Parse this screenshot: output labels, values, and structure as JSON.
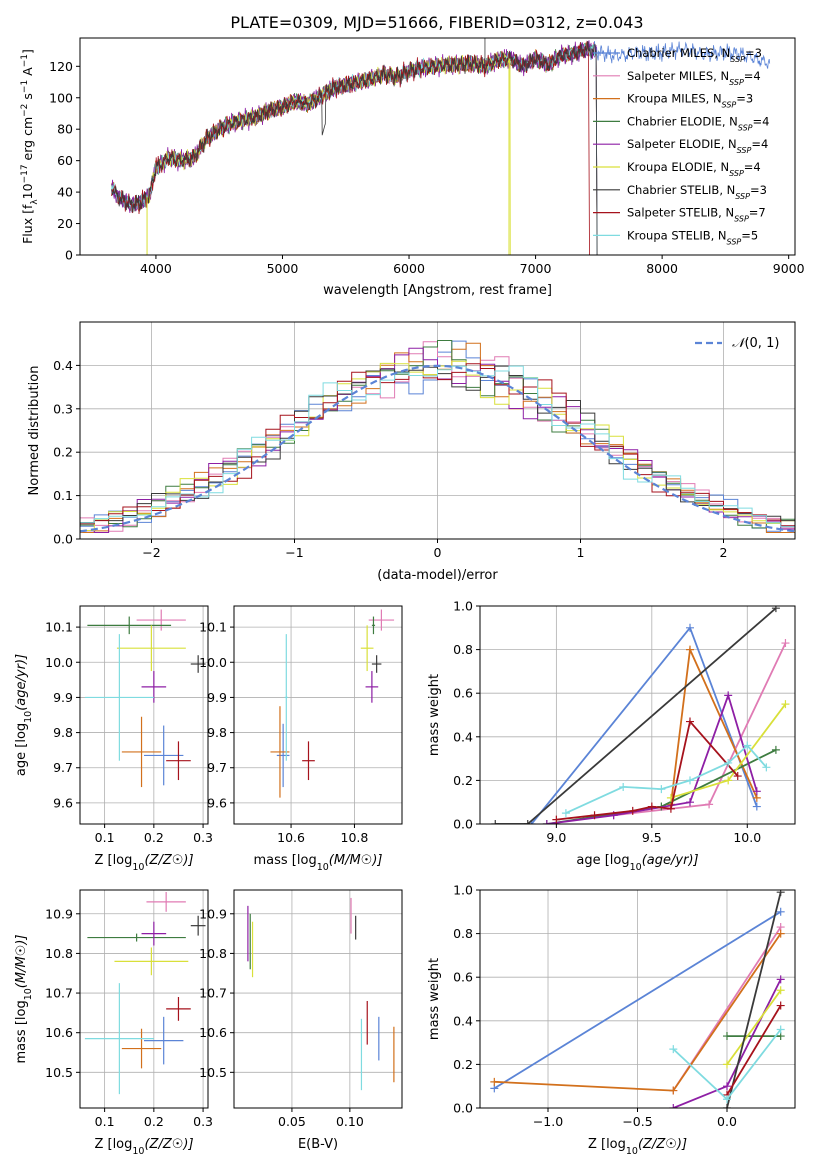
{
  "figure_title": "PLATE=0309, MJD=51666, FIBERID=0312, z=0.043",
  "colors": [
    "#5b84d6",
    "#e07bb4",
    "#d2701c",
    "#3e7c40",
    "#8e1fa5",
    "#d9e03a",
    "#3a3a3a",
    "#a6121c",
    "#7fdbe0"
  ],
  "legend": {
    "entries": [
      "Chabrier MILES, N_SSP=3",
      "Salpeter MILES, N_SSP=4",
      "Kroupa MILES, N_SSP=3",
      "Chabrier ELODIE, N_SSP=4",
      "Salpeter ELODIE, N_SSP=4",
      "Kroupa ELODIE, N_SSP=4",
      "Chabrier STELIB, N_SSP=3",
      "Salpeter STELIB, N_SSP=7",
      "Kroupa STELIB, N_SSP=5"
    ],
    "prefix": [
      "Chabrier MILES, N",
      "Salpeter MILES, N",
      "Kroupa MILES, N",
      "Chabrier ELODIE, N",
      "Salpeter ELODIE, N",
      "Kroupa ELODIE, N",
      "Chabrier STELIB, N",
      "Salpeter STELIB, N",
      "Kroupa STELIB, N"
    ],
    "sub": "SSP",
    "count": [
      "=3",
      "=4",
      "=3",
      "=4",
      "=4",
      "=4",
      "=3",
      "=7",
      "=5"
    ]
  },
  "chart_data": [
    {
      "id": "spectrum",
      "type": "line",
      "xlabel": "wavelength [Angstrom, rest frame]",
      "ylabel_parts": [
        "Flux [f",
        "λ",
        "10",
        "−17",
        " erg cm",
        "−2",
        " s",
        "−1",
        " A",
        "−1",
        "]"
      ],
      "xlim": [
        3400,
        9050
      ],
      "ylim": [
        0,
        138
      ],
      "xticks": [
        4000,
        5000,
        6000,
        7000,
        8000,
        9000
      ],
      "yticks": [
        0,
        20,
        40,
        60,
        80,
        100,
        120
      ],
      "continuum": [
        [
          3650,
          43
        ],
        [
          3700,
          37
        ],
        [
          3800,
          32
        ],
        [
          3870,
          33
        ],
        [
          3950,
          38
        ],
        [
          4000,
          56
        ],
        [
          4050,
          58
        ],
        [
          4100,
          62
        ],
        [
          4200,
          60
        ],
        [
          4300,
          62
        ],
        [
          4400,
          74
        ],
        [
          4500,
          80
        ],
        [
          4600,
          84
        ],
        [
          4700,
          86
        ],
        [
          4800,
          88
        ],
        [
          4900,
          92
        ],
        [
          5000,
          94
        ],
        [
          5100,
          98
        ],
        [
          5200,
          96
        ],
        [
          5300,
          101
        ],
        [
          5400,
          106
        ],
        [
          5500,
          108
        ],
        [
          5600,
          110
        ],
        [
          5700,
          112
        ],
        [
          5800,
          115
        ],
        [
          5900,
          113
        ],
        [
          6000,
          117
        ],
        [
          6100,
          119
        ],
        [
          6200,
          120
        ],
        [
          6300,
          121
        ],
        [
          6400,
          121
        ],
        [
          6500,
          122
        ],
        [
          6600,
          120
        ],
        [
          6700,
          124
        ],
        [
          6800,
          125
        ],
        [
          6900,
          120
        ],
        [
          7000,
          125
        ],
        [
          7100,
          121
        ],
        [
          7200,
          127
        ],
        [
          7300,
          128
        ],
        [
          7400,
          131
        ],
        [
          7500,
          129
        ],
        [
          7600,
          127
        ],
        [
          7700,
          127
        ],
        [
          7800,
          129
        ],
        [
          7900,
          128
        ],
        [
          8000,
          129
        ],
        [
          8100,
          130
        ],
        [
          8200,
          131
        ],
        [
          8300,
          128
        ],
        [
          8400,
          128
        ],
        [
          8500,
          129
        ],
        [
          8600,
          128
        ],
        [
          8700,
          126
        ],
        [
          8800,
          123
        ],
        [
          8850,
          122
        ]
      ],
      "series_ranges": [
        [
          3650,
          8850
        ],
        [
          3650,
          7480
        ],
        [
          3650,
          7480
        ],
        [
          3650,
          7480
        ],
        [
          3650,
          7480
        ],
        [
          3930,
          6800
        ],
        [
          3650,
          7480
        ],
        [
          3650,
          7420
        ],
        [
          3650,
          7480
        ]
      ],
      "drop_edges": [
        [
          3930,
          5
        ],
        [
          6790,
          5
        ],
        [
          7420,
          7
        ]
      ],
      "spike_edges": [
        [
          5330,
          6
        ],
        [
          6600,
          6
        ]
      ]
    },
    {
      "id": "residuals",
      "type": "histogram",
      "xlabel": "(data-model)/error",
      "ylabel": "Normed distribution",
      "xlim": [
        -2.5,
        2.5
      ],
      "ylim": [
        0,
        0.5
      ],
      "xticks": [
        -2,
        -1,
        0,
        1,
        2
      ],
      "yticks": [
        0.0,
        0.1,
        0.2,
        0.3,
        0.4
      ],
      "bin_width": 0.1,
      "gaussian_legend": "N(0,1)",
      "gaussian_symbol": "𝒩",
      "gaussian_args": "(0, 1)"
    },
    {
      "id": "age-vs-z",
      "type": "errorbar",
      "xlabel": "Z [log10(Z/Z☉)]",
      "ylabel": "age [log10(age/yr)]",
      "xlim": [
        0.05,
        0.31
      ],
      "ylim": [
        9.54,
        10.16
      ],
      "xticks": [
        0.1,
        0.2,
        0.3
      ],
      "yticks": [
        9.6,
        9.7,
        9.8,
        9.9,
        10.0,
        10.1
      ],
      "points": [
        [
          0.22,
          0.04,
          9.735,
          0.085
        ],
        [
          0.215,
          0.05,
          10.12,
          0.03
        ],
        [
          0.175,
          0.04,
          9.745,
          0.1
        ],
        [
          0.15,
          0.085,
          10.105,
          0.025
        ],
        [
          0.2,
          0.025,
          9.93,
          0.045
        ],
        [
          0.195,
          0.07,
          10.04,
          0.065
        ],
        [
          0.29,
          0.015,
          9.995,
          0.025
        ],
        [
          0.25,
          0.025,
          9.72,
          0.055
        ],
        [
          0.13,
          0.07,
          9.9,
          0.18
        ]
      ]
    },
    {
      "id": "age-vs-mass",
      "type": "errorbar",
      "xlabel": "mass [log10(M/M☉)]",
      "ylabel": "",
      "xlim": [
        10.42,
        10.95
      ],
      "ylim": [
        9.54,
        10.16
      ],
      "xticks": [
        10.6,
        10.8
      ],
      "yticks": [
        9.6,
        9.7,
        9.8,
        9.9,
        10.0,
        10.1
      ],
      "points": [
        [
          10.575,
          0.02,
          9.735,
          0.09
        ],
        [
          10.885,
          0.04,
          10.12,
          0.03
        ],
        [
          10.565,
          0.03,
          9.745,
          0.13
        ],
        [
          10.86,
          0.005,
          10.105,
          0.025
        ],
        [
          10.855,
          0.02,
          9.93,
          0.045
        ],
        [
          10.84,
          0.02,
          10.04,
          0.065
        ],
        [
          10.87,
          0.015,
          9.995,
          0.025
        ],
        [
          10.655,
          0.02,
          9.72,
          0.055
        ],
        [
          10.585,
          0.005,
          9.9,
          0.18
        ]
      ]
    },
    {
      "id": "mass-weight-vs-age",
      "type": "line",
      "xlabel": "age [log10(age/yr)]",
      "ylabel": "mass weight",
      "xlim": [
        8.6,
        10.25
      ],
      "ylim": [
        0,
        1.0
      ],
      "xticks": [
        9.0,
        9.5,
        10.0
      ],
      "yticks": [
        0.0,
        0.2,
        0.4,
        0.6,
        0.8,
        1.0
      ],
      "series": [
        {
          "x": [
            8.87,
            9.7,
            10.05
          ],
          "y": [
            0.0,
            0.9,
            0.08
          ]
        },
        {
          "x": [
            9.3,
            9.8,
            10.2
          ],
          "y": [
            0.04,
            0.09,
            0.83
          ]
        },
        {
          "x": [
            9.6,
            9.7,
            10.05
          ],
          "y": [
            0.09,
            0.8,
            0.12
          ]
        },
        {
          "x": [
            8.95,
            9.55,
            10.15
          ],
          "y": [
            0.0,
            0.08,
            0.34
          ]
        },
        {
          "x": [
            8.95,
            9.3,
            9.7,
            9.9,
            10.05
          ],
          "y": [
            0.0,
            0.04,
            0.1,
            0.59,
            0.15
          ]
        },
        {
          "x": [
            9.6,
            9.9,
            10.2
          ],
          "y": [
            0.12,
            0.2,
            0.55
          ]
        },
        {
          "x": [
            8.68,
            8.85,
            10.15
          ],
          "y": [
            0.0,
            0.0,
            0.99
          ]
        },
        {
          "x": [
            9.0,
            9.2,
            9.4,
            9.5,
            9.6,
            9.7,
            9.95
          ],
          "y": [
            0.02,
            0.04,
            0.06,
            0.08,
            0.07,
            0.47,
            0.22
          ]
        },
        {
          "x": [
            9.05,
            9.35,
            9.55,
            9.7,
            9.9,
            10.0,
            10.1
          ],
          "y": [
            0.05,
            0.17,
            0.16,
            0.2,
            0.28,
            0.36,
            0.26
          ]
        }
      ]
    },
    {
      "id": "mass-vs-z",
      "type": "errorbar",
      "xlabel": "Z [log10(Z/Z☉)]",
      "ylabel": "mass [log10(M/M☉)]",
      "xlim": [
        0.05,
        0.31
      ],
      "ylim": [
        10.41,
        10.96
      ],
      "xticks": [
        0.1,
        0.2,
        0.3
      ],
      "yticks": [
        10.5,
        10.6,
        10.7,
        10.8,
        10.9
      ],
      "points": [
        [
          0.22,
          0.04,
          10.58,
          0.06
        ],
        [
          0.225,
          0.04,
          10.93,
          0.025
        ],
        [
          0.175,
          0.04,
          10.56,
          0.05
        ],
        [
          0.165,
          0.1,
          10.84,
          0.01
        ],
        [
          0.2,
          0.025,
          10.85,
          0.03
        ],
        [
          0.195,
          0.075,
          10.78,
          0.035
        ],
        [
          0.29,
          0.015,
          10.87,
          0.025
        ],
        [
          0.25,
          0.025,
          10.66,
          0.03
        ],
        [
          0.13,
          0.07,
          10.585,
          0.14
        ]
      ]
    },
    {
      "id": "mass-vs-ebv",
      "type": "errorbar",
      "xlabel": "E(B-V)",
      "ylabel": "",
      "xlim": [
        0.0,
        0.145
      ],
      "ylim": [
        10.41,
        10.96
      ],
      "xticks": [
        0.05,
        0.1
      ],
      "yticks": [
        10.5,
        10.6,
        10.7,
        10.8,
        10.9
      ],
      "points": [
        [
          0.125,
          0.0,
          10.585,
          0.055
        ],
        [
          0.101,
          0.0,
          10.895,
          0.045
        ],
        [
          0.138,
          0.0,
          10.545,
          0.07
        ],
        [
          0.014,
          0.0,
          10.83,
          0.07
        ],
        [
          0.012,
          0.0,
          10.85,
          0.07
        ],
        [
          0.016,
          0.0,
          10.81,
          0.07
        ],
        [
          0.105,
          0.0,
          10.865,
          0.03
        ],
        [
          0.115,
          0.0,
          10.625,
          0.055
        ],
        [
          0.11,
          0.0,
          10.545,
          0.09
        ]
      ]
    },
    {
      "id": "mass-weight-vs-z",
      "type": "line",
      "xlabel": "Z [log10(Z/Z☉)]",
      "ylabel": "mass weight",
      "xlim": [
        -1.38,
        0.38
      ],
      "ylim": [
        0,
        1.0
      ],
      "xticks": [
        -1.0,
        -0.5,
        0.0
      ],
      "yticks": [
        0.0,
        0.2,
        0.4,
        0.6,
        0.8,
        1.0
      ],
      "series": [
        {
          "x": [
            -1.3,
            0.3
          ],
          "y": [
            0.09,
            0.9
          ]
        },
        {
          "x": [
            -0.3,
            0.3
          ],
          "y": [
            0.08,
            0.83
          ]
        },
        {
          "x": [
            -1.3,
            -0.3,
            0.3
          ],
          "y": [
            0.12,
            0.08,
            0.8
          ]
        },
        {
          "x": [
            0.0,
            0.3
          ],
          "y": [
            0.33,
            0.33
          ]
        },
        {
          "x": [
            -0.3,
            0.0,
            0.3
          ],
          "y": [
            0.0,
            0.1,
            0.59
          ]
        },
        {
          "x": [
            0.0,
            0.3
          ],
          "y": [
            0.2,
            0.54
          ]
        },
        {
          "x": [
            0.0,
            0.3
          ],
          "y": [
            0.0,
            0.99
          ]
        },
        {
          "x": [
            0.0,
            0.3
          ],
          "y": [
            0.06,
            0.47
          ]
        },
        {
          "x": [
            -0.3,
            0.0,
            0.3
          ],
          "y": [
            0.27,
            0.04,
            0.36
          ]
        }
      ]
    }
  ]
}
